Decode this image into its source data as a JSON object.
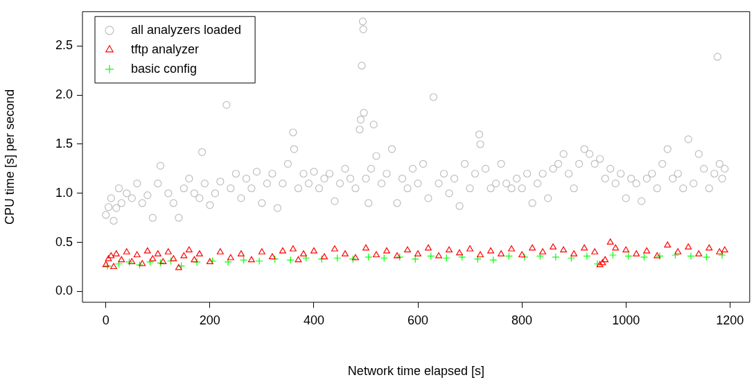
{
  "chart_data": {
    "type": "scatter",
    "xlabel": "Network time elapsed [s]",
    "ylabel": "CPU time [s] per second",
    "xlim": [
      -45,
      1238
    ],
    "ylim": [
      -0.11,
      2.85
    ],
    "xticks": [
      0,
      200,
      400,
      600,
      800,
      1000,
      1200
    ],
    "yticks": [
      {
        "value": 0,
        "label": "0.0"
      },
      {
        "value": 0.5,
        "label": "0.5"
      },
      {
        "value": 1,
        "label": "1.0"
      },
      {
        "value": 1.5,
        "label": "1.5"
      },
      {
        "value": 2,
        "label": "2.0"
      },
      {
        "value": 2.5,
        "label": "2.5"
      }
    ],
    "grid": false,
    "legend": "top left",
    "series": [
      {
        "name": "all analyzers loaded",
        "color": "#bebebe",
        "marker": "circle",
        "x": [
          0,
          5,
          10,
          15,
          20,
          25,
          30,
          40,
          50,
          60,
          70,
          80,
          90,
          100,
          105,
          120,
          130,
          140,
          150,
          160,
          170,
          180,
          185,
          190,
          200,
          210,
          220,
          232,
          240,
          250,
          260,
          270,
          280,
          290,
          300,
          310,
          320,
          330,
          340,
          350,
          360,
          362,
          370,
          380,
          390,
          400,
          410,
          420,
          430,
          440,
          450,
          460,
          470,
          480,
          488,
          490,
          492,
          494,
          495,
          496,
          500,
          505,
          510,
          515,
          520,
          530,
          540,
          550,
          560,
          570,
          580,
          590,
          600,
          610,
          620,
          630,
          640,
          650,
          660,
          670,
          680,
          690,
          700,
          710,
          718,
          720,
          730,
          740,
          750,
          760,
          770,
          780,
          790,
          800,
          810,
          820,
          830,
          840,
          850,
          860,
          870,
          880,
          890,
          900,
          910,
          920,
          930,
          940,
          950,
          960,
          970,
          980,
          990,
          1000,
          1010,
          1020,
          1030,
          1040,
          1050,
          1060,
          1070,
          1080,
          1090,
          1100,
          1110,
          1120,
          1130,
          1140,
          1150,
          1160,
          1170,
          1176,
          1180,
          1185,
          1190
        ],
        "values": [
          0.78,
          0.86,
          0.95,
          0.72,
          0.85,
          1.05,
          0.9,
          1.0,
          0.95,
          1.1,
          0.9,
          0.98,
          0.75,
          1.1,
          1.28,
          1.0,
          0.9,
          0.75,
          1.05,
          1.15,
          1.0,
          0.95,
          1.42,
          1.1,
          0.88,
          1.0,
          1.12,
          1.9,
          1.05,
          1.2,
          0.95,
          1.15,
          1.05,
          1.22,
          0.9,
          1.1,
          1.2,
          0.85,
          1.1,
          1.3,
          1.62,
          1.45,
          1.05,
          1.2,
          1.1,
          1.22,
          1.05,
          1.15,
          1.2,
          0.92,
          1.1,
          1.25,
          1.15,
          1.05,
          1.65,
          1.75,
          2.3,
          2.75,
          2.67,
          1.82,
          1.15,
          0.9,
          1.25,
          1.7,
          1.38,
          1.1,
          1.2,
          1.45,
          0.9,
          1.15,
          1.05,
          1.25,
          1.1,
          1.3,
          0.95,
          1.98,
          1.1,
          1.2,
          1.0,
          1.15,
          0.87,
          1.3,
          1.05,
          1.2,
          1.6,
          1.5,
          1.25,
          1.05,
          1.1,
          1.3,
          1.1,
          1.05,
          1.15,
          1.05,
          1.2,
          0.9,
          1.1,
          1.2,
          0.95,
          1.25,
          1.3,
          1.4,
          1.2,
          1.05,
          1.3,
          1.45,
          1.4,
          1.3,
          1.35,
          1.15,
          1.25,
          1.1,
          1.2,
          0.95,
          1.15,
          1.1,
          0.92,
          1.15,
          1.2,
          1.05,
          1.3,
          1.45,
          1.15,
          1.2,
          1.05,
          1.55,
          1.1,
          1.4,
          1.25,
          1.05,
          1.2,
          2.39,
          1.3,
          1.15,
          1.25
        ]
      },
      {
        "name": "tftp analyzer",
        "color": "#ff0000",
        "marker": "triangle",
        "x": [
          0,
          5,
          10,
          15,
          20,
          30,
          40,
          50,
          60,
          70,
          80,
          90,
          100,
          110,
          120,
          130,
          140,
          150,
          160,
          170,
          180,
          200,
          220,
          240,
          260,
          280,
          300,
          320,
          340,
          360,
          370,
          380,
          400,
          420,
          440,
          460,
          480,
          500,
          520,
          540,
          560,
          580,
          600,
          620,
          640,
          660,
          680,
          700,
          720,
          740,
          760,
          780,
          800,
          820,
          840,
          860,
          880,
          900,
          920,
          940,
          950,
          955,
          960,
          970,
          980,
          1000,
          1020,
          1040,
          1060,
          1080,
          1100,
          1120,
          1140,
          1160,
          1180,
          1190
        ],
        "values": [
          0.27,
          0.33,
          0.36,
          0.25,
          0.38,
          0.32,
          0.4,
          0.3,
          0.37,
          0.28,
          0.41,
          0.33,
          0.38,
          0.3,
          0.4,
          0.33,
          0.24,
          0.36,
          0.42,
          0.32,
          0.38,
          0.3,
          0.4,
          0.34,
          0.38,
          0.32,
          0.4,
          0.35,
          0.41,
          0.43,
          0.32,
          0.38,
          0.41,
          0.35,
          0.43,
          0.38,
          0.34,
          0.44,
          0.37,
          0.41,
          0.36,
          0.42,
          0.38,
          0.44,
          0.36,
          0.42,
          0.39,
          0.43,
          0.37,
          0.41,
          0.38,
          0.43,
          0.37,
          0.44,
          0.4,
          0.45,
          0.42,
          0.38,
          0.44,
          0.4,
          0.27,
          0.29,
          0.32,
          0.5,
          0.44,
          0.42,
          0.38,
          0.41,
          0.36,
          0.47,
          0.4,
          0.45,
          0.38,
          0.44,
          0.4,
          0.42
        ]
      },
      {
        "name": "basic config",
        "color": "#00ff00",
        "marker": "cross",
        "x": [
          3,
          25,
          45,
          65,
          85,
          105,
          125,
          145,
          175,
          205,
          235,
          265,
          295,
          325,
          355,
          385,
          415,
          445,
          475,
          505,
          535,
          565,
          595,
          625,
          655,
          685,
          715,
          745,
          775,
          805,
          835,
          865,
          895,
          925,
          945,
          975,
          1005,
          1035,
          1065,
          1095,
          1125,
          1155,
          1185
        ],
        "values": [
          0.26,
          0.28,
          0.3,
          0.27,
          0.3,
          0.29,
          0.31,
          0.26,
          0.3,
          0.31,
          0.3,
          0.32,
          0.31,
          0.33,
          0.32,
          0.34,
          0.33,
          0.34,
          0.33,
          0.35,
          0.34,
          0.35,
          0.33,
          0.36,
          0.34,
          0.35,
          0.33,
          0.32,
          0.36,
          0.35,
          0.36,
          0.35,
          0.34,
          0.36,
          0.28,
          0.37,
          0.36,
          0.35,
          0.36,
          0.37,
          0.36,
          0.35,
          0.37
        ]
      }
    ]
  }
}
